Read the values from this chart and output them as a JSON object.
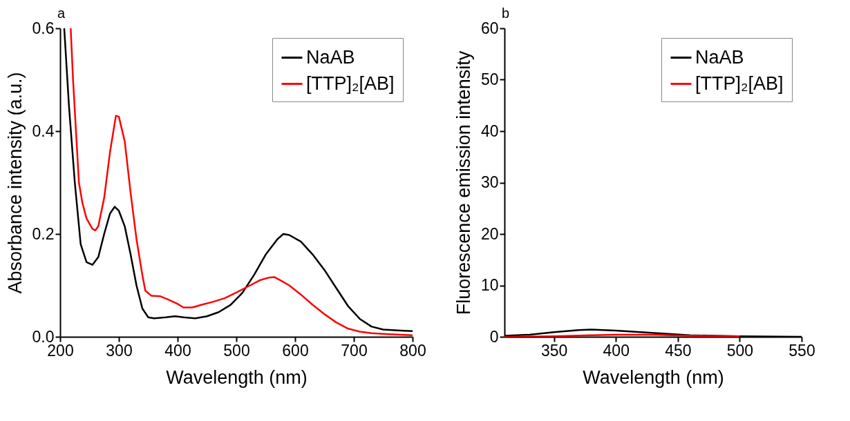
{
  "chart_data": [
    {
      "type": "line",
      "annotations": [
        "a"
      ],
      "xlabel": "Wavelength (nm)",
      "ylabel": "Absorbance intensity (a.u.)",
      "xlim": [
        200,
        800
      ],
      "xticks": [
        200,
        300,
        400,
        500,
        600,
        700,
        800
      ],
      "ylim": [
        0,
        0.6
      ],
      "yticks": [
        {
          "value": 0,
          "label": "0.0"
        },
        0.2,
        0.4,
        0.6
      ],
      "grid": false,
      "legend": "top right",
      "line_style": "solid",
      "marker": "none",
      "series": [
        {
          "name": "NaAB",
          "color": "#000000",
          "x": [
            207,
            215,
            225,
            235,
            245,
            255,
            265,
            275,
            285,
            293,
            300,
            310,
            320,
            330,
            340,
            350,
            360,
            380,
            395,
            410,
            430,
            450,
            470,
            490,
            510,
            530,
            550,
            570,
            580,
            590,
            610,
            630,
            650,
            670,
            690,
            710,
            730,
            750,
            780,
            800
          ],
          "values": [
            0.6,
            0.45,
            0.3,
            0.18,
            0.145,
            0.14,
            0.155,
            0.2,
            0.24,
            0.253,
            0.245,
            0.215,
            0.16,
            0.1,
            0.055,
            0.038,
            0.036,
            0.038,
            0.04,
            0.038,
            0.036,
            0.04,
            0.048,
            0.062,
            0.085,
            0.12,
            0.16,
            0.19,
            0.2,
            0.198,
            0.185,
            0.16,
            0.13,
            0.095,
            0.06,
            0.035,
            0.02,
            0.014,
            0.012,
            0.011
          ]
        },
        {
          "name": "[TTP]₂[AB]",
          "color": "#ff0000",
          "x": [
            218,
            222,
            228,
            232,
            238,
            245,
            255,
            260,
            265,
            275,
            285,
            295,
            300,
            310,
            320,
            330,
            340,
            345,
            355,
            370,
            385,
            400,
            410,
            425,
            440,
            460,
            480,
            500,
            520,
            540,
            555,
            565,
            575,
            590,
            610,
            630,
            650,
            670,
            690,
            710,
            730,
            760,
            800
          ],
          "values": [
            0.6,
            0.5,
            0.38,
            0.3,
            0.26,
            0.23,
            0.21,
            0.207,
            0.215,
            0.27,
            0.36,
            0.43,
            0.428,
            0.38,
            0.28,
            0.19,
            0.12,
            0.09,
            0.08,
            0.079,
            0.072,
            0.064,
            0.057,
            0.057,
            0.062,
            0.068,
            0.075,
            0.086,
            0.098,
            0.11,
            0.115,
            0.116,
            0.11,
            0.1,
            0.082,
            0.062,
            0.044,
            0.028,
            0.016,
            0.01,
            0.007,
            0.005,
            0.003
          ]
        }
      ]
    },
    {
      "type": "line",
      "annotations": [
        "b"
      ],
      "xlabel": "Wavelength (nm)",
      "ylabel": "Fluorescence emission intensity",
      "xlim": [
        310,
        550
      ],
      "xticks": [
        350,
        400,
        450,
        500,
        550
      ],
      "ylim": [
        0,
        60
      ],
      "yticks": [
        0,
        10,
        20,
        30,
        40,
        50,
        60
      ],
      "grid": false,
      "legend": "top right",
      "line_style": "solid",
      "marker": "none",
      "series": [
        {
          "name": "NaAB",
          "color": "#000000",
          "x": [
            310,
            330,
            350,
            370,
            380,
            400,
            420,
            440,
            460,
            480,
            500,
            550
          ],
          "values": [
            0.2,
            0.4,
            0.9,
            1.3,
            1.4,
            1.2,
            0.9,
            0.6,
            0.3,
            0.2,
            0.1,
            0
          ]
        },
        {
          "name": "[TTP]₂[AB]",
          "color": "#ff0000",
          "x": [
            310,
            350,
            380,
            400,
            430,
            460,
            500
          ],
          "values": [
            0,
            0.1,
            0.3,
            0.4,
            0.4,
            0.2,
            0.1
          ]
        }
      ]
    }
  ]
}
